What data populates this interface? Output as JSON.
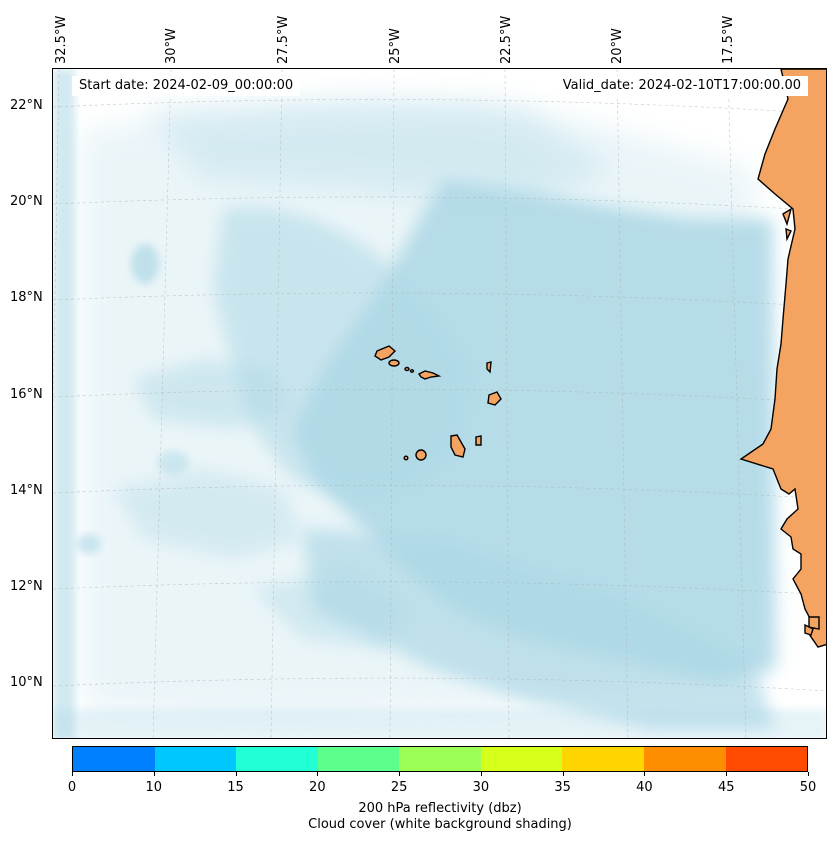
{
  "map": {
    "header": {
      "start_date": "Start date: 2024-02-09_00:00:00",
      "valid_date": "Valid_date: 2024-02-10T17:00:00.00"
    },
    "longitude_labels": [
      "32.5°W",
      "30°W",
      "27.5°W",
      "25°W",
      "22.5°W",
      "20°W",
      "17.5°W"
    ],
    "latitude_labels": [
      "22°N",
      "20°N",
      "18°N",
      "16°N",
      "14°N",
      "12°N",
      "10°N"
    ],
    "colors": {
      "land": "#f4a460",
      "cloud_shading": "#add8e6",
      "coastline": "#000000"
    }
  },
  "colorbar": {
    "ticks": [
      "0",
      "10",
      "15",
      "20",
      "25",
      "30",
      "35",
      "40",
      "45",
      "50"
    ],
    "colors": [
      "#0080ff",
      "#00c8ff",
      "#21ffd4",
      "#5dff8c",
      "#9bff55",
      "#d6ff1c",
      "#ffd500",
      "#ff8d00",
      "#ff4a00"
    ],
    "label_line1": "200 hPa reflectivity (dbz)",
    "label_line2": "Cloud cover (white background shading)"
  }
}
